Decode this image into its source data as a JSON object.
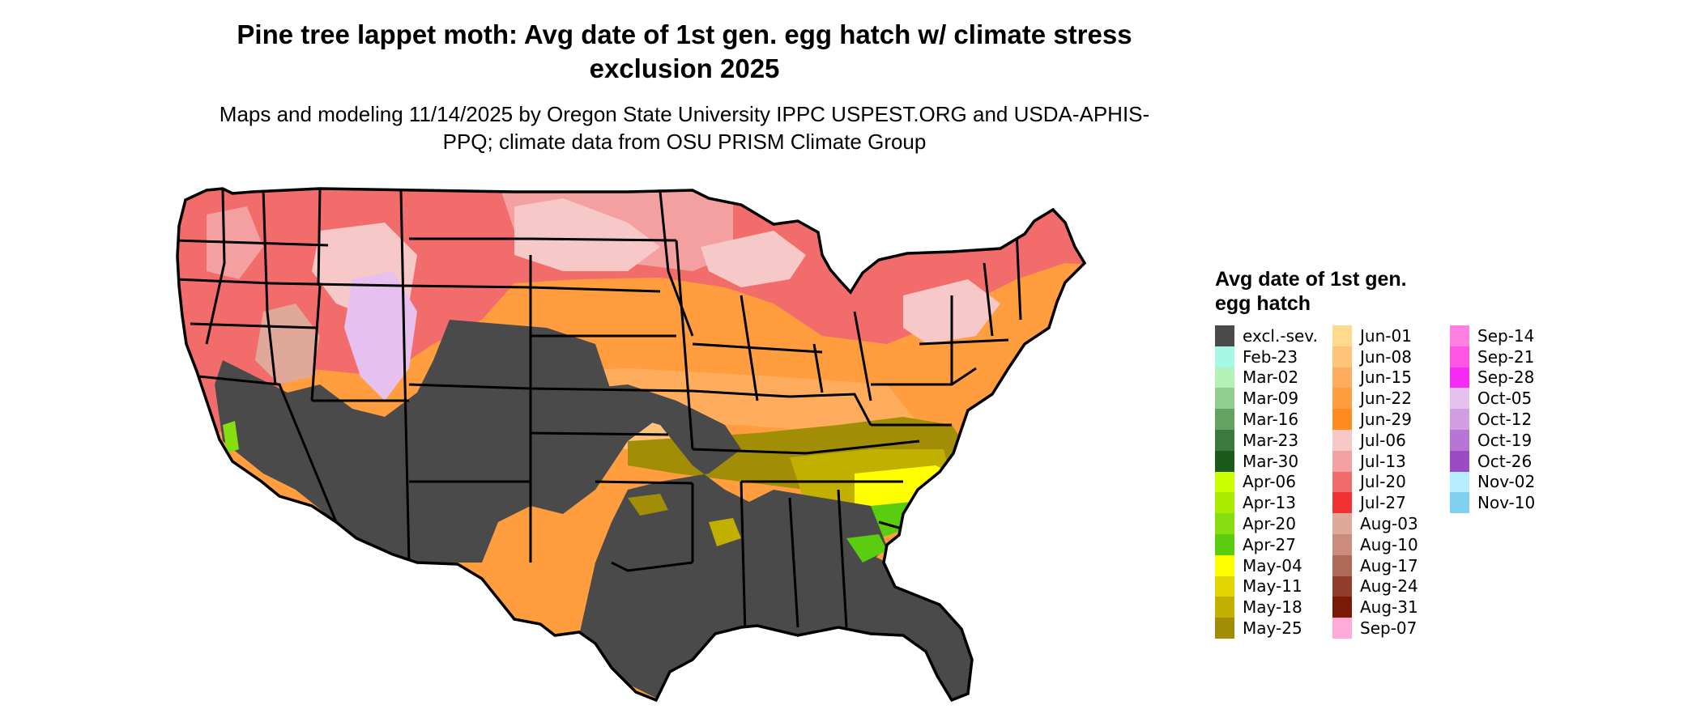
{
  "title": "Pine tree lappet moth: Avg date of 1st gen. egg hatch w/ climate stress exclusion 2025",
  "subtitle": "Maps and modeling 11/14/2025 by Oregon State University IPPC USPEST.ORG and USDA-APHIS-PPQ; climate data from OSU PRISM Climate Group",
  "legend": {
    "title": "Avg date of 1st gen. egg hatch",
    "items": [
      {
        "label": "excl.-sev.",
        "color": "#4a4a4a"
      },
      {
        "label": "Feb-23",
        "color": "#a7f7e5"
      },
      {
        "label": "Mar-02",
        "color": "#b2f2b8"
      },
      {
        "label": "Mar-09",
        "color": "#8fce8f"
      },
      {
        "label": "Mar-16",
        "color": "#62a362"
      },
      {
        "label": "Mar-23",
        "color": "#3a7a3f"
      },
      {
        "label": "Mar-30",
        "color": "#1a5a1a"
      },
      {
        "label": "Apr-06",
        "color": "#ccff00"
      },
      {
        "label": "Apr-13",
        "color": "#a9ec00"
      },
      {
        "label": "Apr-20",
        "color": "#86dd10"
      },
      {
        "label": "Apr-27",
        "color": "#5acd10"
      },
      {
        "label": "May-04",
        "color": "#ffff00"
      },
      {
        "label": "May-11",
        "color": "#e0d500"
      },
      {
        "label": "May-18",
        "color": "#c1b000"
      },
      {
        "label": "May-25",
        "color": "#a18d06"
      },
      {
        "label": "Jun-01",
        "color": "#ffd98c"
      },
      {
        "label": "Jun-08",
        "color": "#ffc47a"
      },
      {
        "label": "Jun-15",
        "color": "#ffad5c"
      },
      {
        "label": "Jun-22",
        "color": "#ff9d3f"
      },
      {
        "label": "Jun-29",
        "color": "#ff8b1f"
      },
      {
        "label": "Jul-06",
        "color": "#f7c8c8"
      },
      {
        "label": "Jul-13",
        "color": "#f5a0a0"
      },
      {
        "label": "Jul-20",
        "color": "#f36c6c"
      },
      {
        "label": "Jul-27",
        "color": "#f03232"
      },
      {
        "label": "Aug-03",
        "color": "#e0a898"
      },
      {
        "label": "Aug-10",
        "color": "#cc8c7c"
      },
      {
        "label": "Aug-17",
        "color": "#b06a5a"
      },
      {
        "label": "Aug-24",
        "color": "#923c2c"
      },
      {
        "label": "Aug-31",
        "color": "#7a1a06"
      },
      {
        "label": "Sep-07",
        "color": "#ffaad8"
      },
      {
        "label": "Sep-14",
        "color": "#ff80e0"
      },
      {
        "label": "Sep-21",
        "color": "#ff55e5"
      },
      {
        "label": "Sep-28",
        "color": "#f52af5"
      },
      {
        "label": "Oct-05",
        "color": "#e6c0ee"
      },
      {
        "label": "Oct-12",
        "color": "#d29ee2"
      },
      {
        "label": "Oct-19",
        "color": "#b776d5"
      },
      {
        "label": "Oct-26",
        "color": "#9b4cc4"
      },
      {
        "label": "Nov-02",
        "color": "#b6ecff"
      },
      {
        "label": "Nov-10",
        "color": "#80d0f0"
      }
    ]
  },
  "map": {
    "palette": {
      "excluded": "#4a4a4a",
      "north": "#f36c6c",
      "north_light": "#f7c8c8",
      "mid": "#ff9d3f",
      "mid_light": "#ffc47a",
      "south_olive": "#a18d06",
      "south_yellow": "#ffff00",
      "green": "#5acd10",
      "mountain": "#e6c0ee",
      "border": "#000000"
    }
  }
}
